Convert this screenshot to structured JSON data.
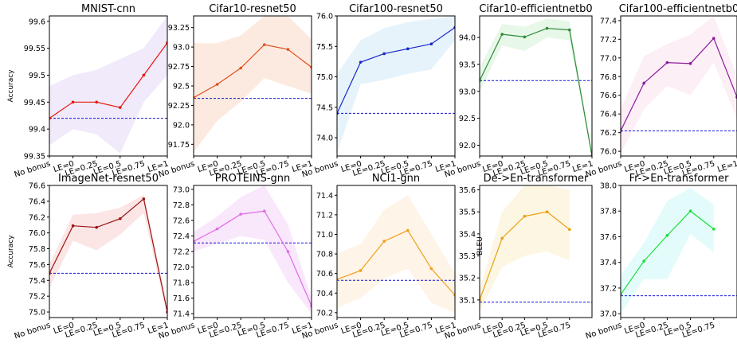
{
  "figure": {
    "shared_ylabel_row1": "Accuracy",
    "shared_ylabel_row2": "Accuracy",
    "shared_x_ticks": [
      "No bonus",
      "LE=0",
      "LE=0.25",
      "LE=0.5",
      "LE=0.75",
      "LE=1"
    ]
  },
  "chart_data": [
    {
      "type": "line",
      "title": "MNIST-cnn",
      "xlabel": "",
      "ylabel": "Accuracy",
      "color": "#e8180c",
      "band_color": "#c9b3f0",
      "ylim": [
        99.35,
        99.61
      ],
      "yticks": [
        99.35,
        99.4,
        99.45,
        99.5,
        99.55,
        99.6
      ],
      "ytick_labels": [
        "99.35",
        "99.4",
        "99.45",
        "99.5",
        "99.55",
        "99.6"
      ],
      "x_ticks": [
        "No bonus",
        "LE=0",
        "LE=0.25",
        "LE=0.5",
        "LE=0.75",
        "LE=1"
      ],
      "series": [
        {
          "values": [
            99.42,
            99.45,
            99.45,
            99.44,
            99.5,
            99.56
          ]
        }
      ],
      "band_low": [
        99.37,
        99.4,
        99.39,
        99.355,
        99.45,
        99.5
      ],
      "band_high": [
        99.48,
        99.5,
        99.51,
        99.53,
        99.55,
        99.61
      ],
      "baseline": 99.42
    },
    {
      "type": "line",
      "title": "Cifar10-resnet50",
      "xlabel": "",
      "ylabel": "",
      "color": "#e0501e",
      "band_color": "#f5b58f",
      "ylim": [
        91.6,
        93.4
      ],
      "yticks": [
        91.75,
        92.0,
        92.25,
        92.5,
        92.75,
        93.0,
        93.25
      ],
      "ytick_labels": [
        "91.75",
        "92.0",
        "92.25",
        "92.5",
        "92.75",
        "93.0",
        "93.25"
      ],
      "x_ticks": [
        "No bonus",
        "LE=0",
        "LE=0.25",
        "LE=0.5",
        "LE=0.75",
        "LE=1"
      ],
      "series": [
        {
          "values": [
            92.35,
            92.52,
            92.73,
            93.03,
            92.97,
            92.74
          ]
        }
      ],
      "band_low": [
        91.65,
        92.05,
        92.3,
        92.6,
        92.5,
        92.4
      ],
      "band_high": [
        93.05,
        93.05,
        93.15,
        93.4,
        93.4,
        93.1
      ],
      "baseline": 92.34
    },
    {
      "type": "line",
      "title": "Cifar100-resnet50",
      "xlabel": "",
      "ylabel": "",
      "color": "#1a28c8",
      "band_color": "#a9d3f2",
      "ylim": [
        73.7,
        76.0
      ],
      "yticks": [
        74.0,
        74.5,
        75.0,
        75.5,
        76.0
      ],
      "ytick_labels": [
        "74.0",
        "74.5",
        "75.0",
        "75.5",
        "76.0"
      ],
      "x_ticks": [
        "No bonus",
        "LE=0",
        "LE=0.25",
        "LE=0.5",
        "LE=0.75",
        "LE=1"
      ],
      "series": [
        {
          "values": [
            74.4,
            75.24,
            75.38,
            75.46,
            75.54,
            75.81
          ]
        }
      ],
      "band_low": [
        73.75,
        74.88,
        74.95,
        75.05,
        75.12,
        75.6
      ],
      "band_high": [
        75.05,
        75.6,
        75.8,
        75.9,
        75.95,
        76.0
      ],
      "baseline": 74.4
    },
    {
      "type": "line",
      "title": "Cifar10-efficientnetb0",
      "xlabel": "",
      "ylabel": "",
      "color": "#2e8b3a",
      "band_color": "#a8e4ad",
      "ylim": [
        91.8,
        94.4
      ],
      "yticks": [
        92.0,
        92.5,
        93.0,
        93.5,
        94.0
      ],
      "ytick_labels": [
        "92.0",
        "92.5",
        "93.0",
        "93.5",
        "94.0"
      ],
      "x_ticks": [
        "No bonus",
        "LE=0",
        "LE=0.25",
        "LE=0.5",
        "LE=0.75",
        "LE=1"
      ],
      "series": [
        {
          "values": [
            93.2,
            94.06,
            94.01,
            94.17,
            94.14,
            91.8
          ]
        }
      ],
      "band_low": [
        93.0,
        93.85,
        93.75,
        94.0,
        93.95,
        91.8
      ],
      "band_high": [
        93.45,
        94.25,
        94.2,
        94.35,
        94.3,
        91.9
      ],
      "baseline": 93.2
    },
    {
      "type": "line",
      "title": "Cifar100-efficientnetb0",
      "xlabel": "",
      "ylabel": "",
      "color": "#8b1a9c",
      "band_color": "#f4c4e0",
      "ylim": [
        75.95,
        77.45
      ],
      "yticks": [
        76.0,
        76.2,
        76.4,
        76.6,
        76.8,
        77.0,
        77.2,
        77.4
      ],
      "ytick_labels": [
        "76.0",
        "76.2",
        "76.4",
        "76.6",
        "76.8",
        "77.0",
        "77.2",
        "77.4"
      ],
      "x_ticks": [
        "No bonus",
        "LE=0",
        "LE=0.25",
        "LE=0.5",
        "LE=0.75",
        "LE=1"
      ],
      "series": [
        {
          "values": [
            76.22,
            76.73,
            76.95,
            76.94,
            77.21,
            76.58
          ]
        }
      ],
      "band_low": [
        75.98,
        76.45,
        76.7,
        76.6,
        76.95,
        76.35
      ],
      "band_high": [
        76.45,
        77.02,
        77.15,
        77.25,
        77.45,
        76.8
      ],
      "baseline": 76.22
    },
    {
      "type": "line",
      "title": "ImageNet-resnet50",
      "xlabel": "",
      "ylabel": "Accuracy",
      "color": "#9a1414",
      "band_color": "#f3a3a3",
      "ylim": [
        74.93,
        76.6
      ],
      "yticks": [
        75.0,
        75.2,
        75.4,
        75.6,
        75.8,
        76.0,
        76.2,
        76.4,
        76.6
      ],
      "ytick_labels": [
        "75.0",
        "75.2",
        "75.4",
        "75.6",
        "75.8",
        "76.0",
        "76.2",
        "76.4",
        "76.6"
      ],
      "x_ticks": [
        "No bonus",
        "LE=0",
        "LE=0.25",
        "LE=0.5",
        "LE=0.75",
        "LE=1"
      ],
      "series": [
        {
          "values": [
            75.49,
            76.09,
            76.07,
            76.18,
            76.43,
            75.0
          ]
        }
      ],
      "band_low": [
        75.3,
        75.9,
        75.78,
        75.98,
        76.25,
        74.95
      ],
      "band_high": [
        75.6,
        76.23,
        76.25,
        76.32,
        76.48,
        75.1
      ],
      "baseline": 75.49
    },
    {
      "type": "line",
      "title": "PROTEINS-gnn",
      "xlabel": "",
      "ylabel": "",
      "color": "#e06ce8",
      "band_color": "#e8a8f0",
      "ylim": [
        71.35,
        73.05
      ],
      "yticks": [
        71.4,
        71.6,
        71.8,
        72.0,
        72.2,
        72.4,
        72.6,
        72.8,
        73.0
      ],
      "ytick_labels": [
        "71.4",
        "71.6",
        "71.8",
        "72.0",
        "72.2",
        "72.4",
        "72.6",
        "72.8",
        "73.0"
      ],
      "x_ticks": [
        "No bonus",
        "LE=0",
        "LE=0.25",
        "LE=0.5",
        "LE=0.75",
        "LE=1"
      ],
      "series": [
        {
          "values": [
            72.33,
            72.49,
            72.68,
            72.72,
            72.2,
            71.5
          ]
        }
      ],
      "band_low": [
        72.2,
        72.3,
        72.4,
        72.35,
        71.8,
        71.4
      ],
      "band_high": [
        72.45,
        72.65,
        72.9,
        73.05,
        72.55,
        71.6
      ],
      "baseline": 72.31
    },
    {
      "type": "line",
      "title": "NCI1-gnn",
      "xlabel": "",
      "ylabel": "",
      "color": "#f0a020",
      "band_color": "#fbd9a8",
      "ylim": [
        70.15,
        71.5
      ],
      "yticks": [
        70.2,
        70.4,
        70.6,
        70.8,
        71.0,
        71.2,
        71.4
      ],
      "ytick_labels": [
        "70.2",
        "70.4",
        "70.6",
        "70.8",
        "71.0",
        "71.2",
        "71.4"
      ],
      "x_ticks": [
        "No bonus",
        "LE=0",
        "LE=0.25",
        "LE=0.5",
        "LE=0.75",
        "LE=1"
      ],
      "series": [
        {
          "values": [
            70.54,
            70.63,
            70.93,
            71.04,
            70.65,
            70.38
          ]
        }
      ],
      "band_low": [
        70.25,
        70.35,
        70.55,
        70.65,
        70.3,
        70.2
      ],
      "band_high": [
        70.8,
        70.9,
        71.25,
        71.4,
        71.0,
        70.6
      ],
      "baseline": 70.53
    },
    {
      "type": "line",
      "title": "De->En-transformer",
      "xlabel": "",
      "ylabel": "BLEU",
      "color": "#e8a010",
      "band_color": "#f8e09a",
      "ylim": [
        35.02,
        35.62
      ],
      "yticks": [
        35.1,
        35.2,
        35.3,
        35.4,
        35.5,
        35.6
      ],
      "ytick_labels": [
        "35.1",
        "35.2",
        "35.3",
        "35.4",
        "35.5",
        "35.6"
      ],
      "x_ticks": [
        "No bonus",
        "LE=0",
        "LE=0.25",
        "LE=0.5",
        "LE=0.75"
      ],
      "series": [
        {
          "values": [
            35.1,
            35.38,
            35.48,
            35.5,
            35.42
          ]
        }
      ],
      "band_low": [
        35.05,
        35.25,
        35.3,
        35.32,
        35.28
      ],
      "band_high": [
        35.15,
        35.5,
        35.62,
        35.62,
        35.6
      ],
      "baseline": 35.09
    },
    {
      "type": "line",
      "title": "Fr->En-transformer",
      "xlabel": "",
      "ylabel": "",
      "color": "#18e038",
      "band_color": "#9af5f0",
      "ylim": [
        36.97,
        38.0
      ],
      "yticks": [
        37.0,
        37.2,
        37.4,
        37.6,
        37.8,
        38.0
      ],
      "ytick_labels": [
        "37.0",
        "37.2",
        "37.4",
        "37.6",
        "37.8",
        "38.0"
      ],
      "x_ticks": [
        "No bonus",
        "LE=0",
        "LE=0.25",
        "LE=0.5",
        "LE=0.75"
      ],
      "series": [
        {
          "values": [
            37.15,
            37.41,
            37.61,
            37.8,
            37.66
          ]
        }
      ],
      "band_low": [
        37.0,
        37.27,
        37.27,
        37.62,
        37.48
      ],
      "band_high": [
        37.3,
        37.55,
        37.88,
        37.98,
        37.85
      ],
      "baseline": 37.14
    }
  ]
}
